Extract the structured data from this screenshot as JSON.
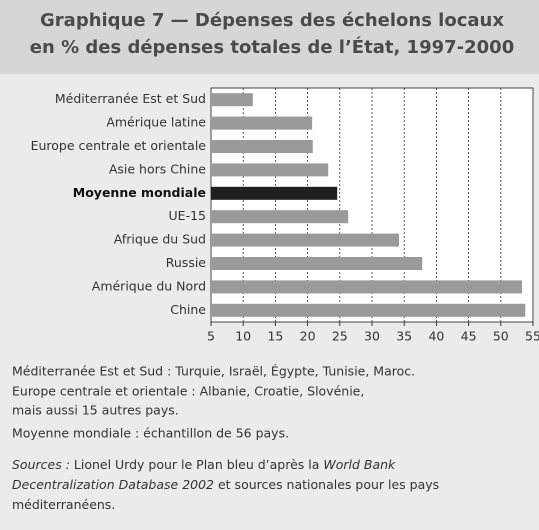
{
  "chart_data": {
    "type": "barh",
    "title": [
      "Graphique 7 — Dépenses des échelons locaux",
      "en % des dépenses totales de l’État, 1997-2000"
    ],
    "categories": [
      "Méditerranée Est et Sud",
      "Amérique latine",
      "Europe centrale et orientale",
      "Asie hors Chine",
      "Moyenne mondiale",
      "UE-15",
      "Afrique du Sud",
      "Russie",
      "Amérique du Nord",
      "Chine"
    ],
    "values": [
      11.5,
      20.7,
      20.8,
      23.2,
      24.6,
      26.3,
      34.2,
      37.8,
      53.3,
      53.8
    ],
    "colors": [
      "#9a9a9a",
      "#9a9a9a",
      "#9a9a9a",
      "#9a9a9a",
      "#231f20",
      "#9a9a9a",
      "#9a9a9a",
      "#9a9a9a",
      "#9a9a9a",
      "#9a9a9a"
    ],
    "bold_labels": [
      false,
      false,
      false,
      false,
      true,
      false,
      false,
      false,
      false,
      false
    ],
    "xlim": [
      5,
      55
    ],
    "xticks": [
      5,
      10,
      15,
      20,
      25,
      30,
      35,
      40,
      45,
      50,
      55
    ],
    "grid": true,
    "notes": [
      "Méditerranée Est et Sud : Turquie, Israël, Égypte, Tunisie, Maroc.",
      "Europe centrale et orientale : Albanie, Croatie, Slovénie,",
      "mais aussi 15 autres pays.",
      "Moyenne mondiale : échantillon de 56 pays."
    ],
    "sources": [
      [
        {
          "text": "Sources :",
          "italic": true
        },
        {
          "text": " Lionel Urdy pour le Plan bleu d’après la ",
          "italic": false
        },
        {
          "text": "World Bank",
          "italic": true
        }
      ],
      [
        {
          "text": "Decentralization Database 2002",
          "italic": true
        },
        {
          "text": " et sources nationales pour les pays",
          "italic": false
        }
      ],
      [
        {
          "text": "méditerranéens.",
          "italic": false
        }
      ]
    ]
  }
}
